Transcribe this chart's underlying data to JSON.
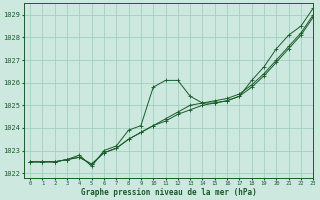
{
  "xlabel": "Graphe pression niveau de la mer (hPa)",
  "ylim": [
    1021.8,
    1029.5
  ],
  "xlim": [
    -0.5,
    23
  ],
  "yticks": [
    1022,
    1023,
    1024,
    1025,
    1026,
    1027,
    1028,
    1029
  ],
  "xticks": [
    0,
    1,
    2,
    3,
    4,
    5,
    6,
    7,
    8,
    9,
    10,
    11,
    12,
    13,
    14,
    15,
    16,
    17,
    18,
    19,
    20,
    21,
    22,
    23
  ],
  "bg_color": "#cce8df",
  "grid_color": "#99ccbb",
  "line_color": "#1a5c2a",
  "series1": [
    1022.5,
    1022.5,
    1022.5,
    1022.6,
    1022.8,
    1022.3,
    1023.0,
    1023.2,
    1023.9,
    1024.1,
    1025.8,
    1026.1,
    1026.1,
    1025.4,
    1025.1,
    1025.1,
    1025.2,
    1025.4,
    1026.1,
    1026.7,
    1027.5,
    1028.1,
    1028.5,
    1029.3
  ],
  "series2": [
    1022.5,
    1022.5,
    1022.5,
    1022.6,
    1022.7,
    1022.4,
    1022.9,
    1023.1,
    1023.5,
    1023.8,
    1024.1,
    1024.4,
    1024.7,
    1025.0,
    1025.1,
    1025.2,
    1025.3,
    1025.5,
    1025.9,
    1026.4,
    1027.0,
    1027.6,
    1028.2,
    1029.0
  ],
  "series3": [
    1022.5,
    1022.5,
    1022.5,
    1022.6,
    1022.7,
    1022.4,
    1022.9,
    1023.1,
    1023.5,
    1023.8,
    1024.1,
    1024.3,
    1024.6,
    1024.8,
    1025.0,
    1025.1,
    1025.2,
    1025.4,
    1025.8,
    1026.3,
    1026.9,
    1027.5,
    1028.1,
    1028.9
  ]
}
